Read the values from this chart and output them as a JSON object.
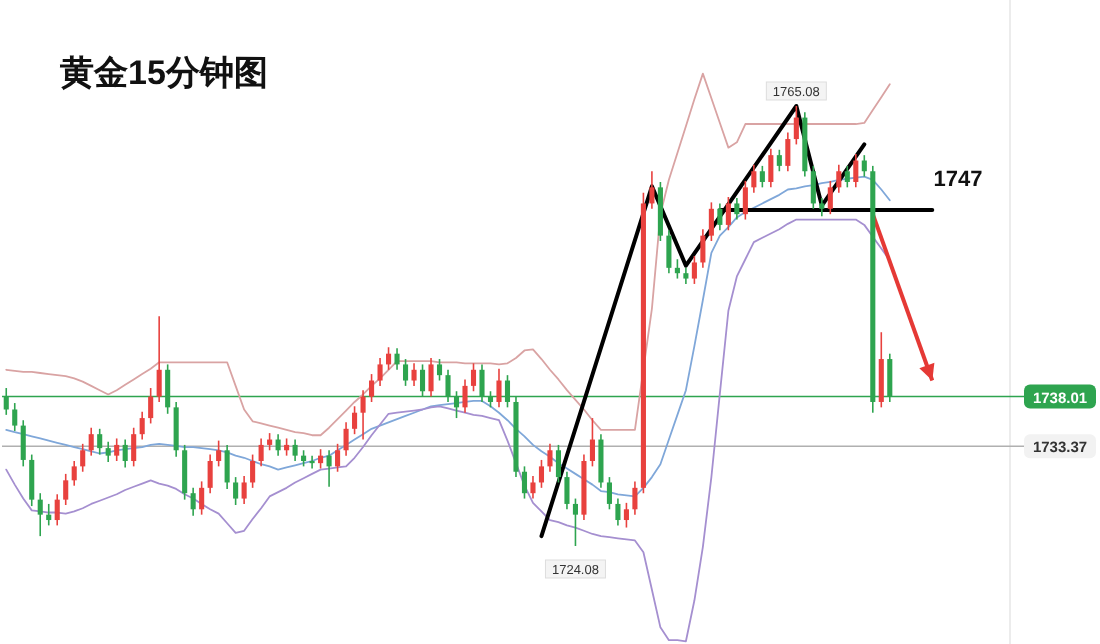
{
  "chart_data": {
    "type": "candlestick",
    "title": "黄金15分钟图",
    "categories": [
      null,
      null,
      null,
      null,
      null,
      null,
      null,
      null,
      null,
      null,
      null,
      null,
      null,
      null,
      null,
      null,
      null,
      null,
      null,
      null,
      null,
      null,
      null,
      null,
      null,
      null,
      null,
      null,
      null,
      null,
      null,
      null,
      null,
      null,
      null,
      null,
      null,
      null,
      null,
      null,
      null,
      null,
      null,
      null,
      null,
      null,
      null,
      null,
      null,
      null,
      null,
      null,
      null,
      null,
      null,
      null,
      null,
      null,
      null,
      null,
      null,
      null,
      null,
      null,
      null,
      null,
      null,
      null,
      null,
      null,
      null,
      null,
      null,
      null,
      null,
      null,
      null,
      null,
      null,
      null,
      null,
      null,
      null,
      null,
      null,
      null,
      null,
      null,
      null,
      null,
      null,
      null,
      null,
      null,
      null,
      null,
      null,
      null,
      null,
      null,
      null,
      null,
      null,
      null,
      null,
      null,
      null,
      null,
      null,
      null,
      null,
      null,
      null
    ],
    "ohlc": [
      [
        1738.0,
        1738.8,
        1736.3,
        1736.8
      ],
      [
        1736.8,
        1737.4,
        1734.8,
        1735.3
      ],
      [
        1735.3,
        1735.8,
        1731.5,
        1732.1
      ],
      [
        1732.1,
        1732.6,
        1727.8,
        1728.4
      ],
      [
        1728.4,
        1729.0,
        1725.0,
        1727.0
      ],
      [
        1727.0,
        1728.0,
        1726.0,
        1726.5
      ],
      [
        1726.5,
        1728.9,
        1726.0,
        1728.4
      ],
      [
        1728.4,
        1730.8,
        1727.9,
        1730.2
      ],
      [
        1730.2,
        1732.0,
        1729.7,
        1731.5
      ],
      [
        1731.5,
        1733.6,
        1731.0,
        1733.0
      ],
      [
        1733.0,
        1735.1,
        1732.5,
        1734.5
      ],
      [
        1734.5,
        1735.0,
        1732.6,
        1733.2
      ],
      [
        1733.2,
        1733.8,
        1731.9,
        1732.5
      ],
      [
        1732.5,
        1734.1,
        1732.0,
        1733.5
      ],
      [
        1733.5,
        1734.0,
        1731.4,
        1732.0
      ],
      [
        1732.0,
        1735.1,
        1731.5,
        1734.5
      ],
      [
        1734.5,
        1736.6,
        1734.0,
        1736.0
      ],
      [
        1736.0,
        1738.8,
        1735.5,
        1738.0
      ],
      [
        1738.0,
        1745.5,
        1737.5,
        1740.5
      ],
      [
        1740.5,
        1741.0,
        1736.4,
        1737.0
      ],
      [
        1737.0,
        1737.5,
        1732.4,
        1733.0
      ],
      [
        1733.0,
        1733.5,
        1728.4,
        1729.0
      ],
      [
        1729.0,
        1729.5,
        1726.9,
        1727.5
      ],
      [
        1727.5,
        1730.1,
        1727.0,
        1729.5
      ],
      [
        1729.5,
        1732.6,
        1729.0,
        1732.0
      ],
      [
        1732.0,
        1733.9,
        1731.5,
        1733.0
      ],
      [
        1733.0,
        1733.5,
        1729.4,
        1730.0
      ],
      [
        1730.0,
        1730.5,
        1727.9,
        1728.5
      ],
      [
        1728.5,
        1730.6,
        1728.0,
        1730.0
      ],
      [
        1730.0,
        1732.6,
        1729.5,
        1732.0
      ],
      [
        1732.0,
        1734.1,
        1731.5,
        1733.5
      ],
      [
        1733.5,
        1734.6,
        1733.0,
        1734.0
      ],
      [
        1734.0,
        1734.5,
        1732.5,
        1733.0
      ],
      [
        1733.0,
        1734.1,
        1732.5,
        1733.5
      ],
      [
        1733.5,
        1734.0,
        1732.0,
        1732.5
      ],
      [
        1732.5,
        1733.0,
        1731.5,
        1732.0
      ],
      [
        1732.0,
        1732.5,
        1731.3,
        1731.8
      ],
      [
        1731.8,
        1733.1,
        1731.3,
        1732.5
      ],
      [
        1732.5,
        1733.0,
        1729.6,
        1731.5
      ],
      [
        1731.5,
        1733.6,
        1731.0,
        1733.0
      ],
      [
        1733.0,
        1735.6,
        1732.5,
        1735.0
      ],
      [
        1735.0,
        1737.1,
        1734.5,
        1736.5
      ],
      [
        1736.5,
        1738.6,
        1734.0,
        1738.0
      ],
      [
        1738.0,
        1740.1,
        1737.5,
        1739.5
      ],
      [
        1739.5,
        1741.6,
        1739.0,
        1741.0
      ],
      [
        1741.0,
        1742.6,
        1740.5,
        1742.0
      ],
      [
        1742.0,
        1742.5,
        1740.5,
        1741.0
      ],
      [
        1741.0,
        1741.5,
        1739.0,
        1739.5
      ],
      [
        1739.5,
        1741.1,
        1739.0,
        1740.5
      ],
      [
        1740.5,
        1741.0,
        1738.0,
        1738.5
      ],
      [
        1738.5,
        1741.6,
        1738.0,
        1741.0
      ],
      [
        1741.0,
        1741.5,
        1739.5,
        1740.0
      ],
      [
        1740.0,
        1740.5,
        1737.5,
        1738.0
      ],
      [
        1738.0,
        1738.5,
        1736.0,
        1737.0
      ],
      [
        1737.0,
        1739.6,
        1736.5,
        1739.0
      ],
      [
        1739.0,
        1741.1,
        1738.5,
        1740.5
      ],
      [
        1740.5,
        1741.0,
        1737.5,
        1738.0
      ],
      [
        1738.0,
        1738.5,
        1737.0,
        1737.5
      ],
      [
        1737.5,
        1740.6,
        1737.0,
        1739.5
      ],
      [
        1739.5,
        1740.0,
        1737.0,
        1737.5
      ],
      [
        1737.5,
        1738.0,
        1730.5,
        1731.0
      ],
      [
        1731.0,
        1731.5,
        1728.5,
        1729.0
      ],
      [
        1729.0,
        1730.6,
        1728.5,
        1730.0
      ],
      [
        1730.0,
        1732.1,
        1729.5,
        1731.5
      ],
      [
        1731.5,
        1733.6,
        1731.0,
        1733.0
      ],
      [
        1733.0,
        1733.5,
        1730.0,
        1730.5
      ],
      [
        1730.5,
        1731.0,
        1727.5,
        1728.0
      ],
      [
        1728.0,
        1728.5,
        1724.08,
        1727.0
      ],
      [
        1727.0,
        1732.6,
        1726.5,
        1732.0
      ],
      [
        1732.0,
        1736.0,
        1731.5,
        1734.0
      ],
      [
        1734.0,
        1734.5,
        1729.5,
        1730.0
      ],
      [
        1730.0,
        1730.5,
        1727.5,
        1728.0
      ],
      [
        1728.0,
        1728.5,
        1726.0,
        1726.5
      ],
      [
        1726.5,
        1728.1,
        1725.8,
        1727.5
      ],
      [
        1727.5,
        1730.1,
        1727.0,
        1729.5
      ],
      [
        1729.5,
        1757.0,
        1729.0,
        1756.0
      ],
      [
        1756.0,
        1759.0,
        1755.5,
        1757.5
      ],
      [
        1757.5,
        1758.0,
        1752.5,
        1753.0
      ],
      [
        1753.0,
        1753.5,
        1749.5,
        1750.0
      ],
      [
        1750.0,
        1750.8,
        1749.0,
        1749.5
      ],
      [
        1749.5,
        1750.0,
        1748.5,
        1749.0
      ],
      [
        1749.0,
        1751.1,
        1748.5,
        1750.5
      ],
      [
        1750.5,
        1753.6,
        1750.0,
        1753.0
      ],
      [
        1753.0,
        1756.1,
        1752.5,
        1755.5
      ],
      [
        1755.5,
        1756.0,
        1753.5,
        1754.0
      ],
      [
        1754.0,
        1756.6,
        1753.5,
        1756.0
      ],
      [
        1756.0,
        1756.5,
        1754.5,
        1755.0
      ],
      [
        1755.0,
        1758.1,
        1754.5,
        1757.5
      ],
      [
        1757.5,
        1759.6,
        1757.0,
        1759.0
      ],
      [
        1759.0,
        1759.5,
        1757.5,
        1758.0
      ],
      [
        1758.0,
        1761.1,
        1757.5,
        1760.5
      ],
      [
        1760.5,
        1761.0,
        1759.0,
        1759.5
      ],
      [
        1759.5,
        1762.6,
        1759.0,
        1762.0
      ],
      [
        1762.0,
        1765.08,
        1761.5,
        1764.0
      ],
      [
        1764.0,
        1764.5,
        1758.5,
        1759.0
      ],
      [
        1759.0,
        1759.5,
        1755.5,
        1756.0
      ],
      [
        1756.0,
        1756.5,
        1754.8,
        1755.5
      ],
      [
        1755.5,
        1758.1,
        1755.0,
        1757.5
      ],
      [
        1757.5,
        1759.6,
        1757.0,
        1759.0
      ],
      [
        1759.0,
        1759.5,
        1757.5,
        1758.0
      ],
      [
        1758.0,
        1760.6,
        1757.5,
        1760.0
      ],
      [
        1760.0,
        1760.5,
        1758.5,
        1759.0
      ],
      [
        1759.0,
        1759.5,
        1736.5,
        1737.5
      ],
      [
        1737.5,
        1744.0,
        1737.0,
        1741.5
      ],
      [
        1741.5,
        1742.0,
        1737.5,
        1738.01
      ],
      null,
      null,
      null,
      null,
      null,
      null,
      null,
      null
    ],
    "colors": [
      "#2ea44f",
      "#2ea44f",
      "#2ea44f",
      "#2ea44f",
      "#2ea44f",
      "#2ea44f",
      "#e8413e",
      "#e8413e",
      "#e8413e",
      "#e8413e",
      "#e8413e",
      "#2ea44f",
      "#2ea44f",
      "#e8413e",
      "#2ea44f",
      "#e8413e",
      "#e8413e",
      "#e8413e",
      "#e8413e",
      "#2ea44f",
      "#2ea44f",
      "#2ea44f",
      "#2ea44f",
      "#e8413e",
      "#e8413e",
      "#e8413e",
      "#2ea44f",
      "#2ea44f",
      "#e8413e",
      "#e8413e",
      "#e8413e",
      "#e8413e",
      "#2ea44f",
      "#e8413e",
      "#2ea44f",
      "#2ea44f",
      "#2ea44f",
      "#e8413e",
      "#2ea44f",
      "#e8413e",
      "#e8413e",
      "#e8413e",
      "#e8413e",
      "#e8413e",
      "#e8413e",
      "#e8413e",
      "#2ea44f",
      "#2ea44f",
      "#e8413e",
      "#2ea44f",
      "#e8413e",
      "#2ea44f",
      "#2ea44f",
      "#2ea44f",
      "#e8413e",
      "#e8413e",
      "#2ea44f",
      "#2ea44f",
      "#e8413e",
      "#2ea44f",
      "#2ea44f",
      "#2ea44f",
      "#e8413e",
      "#e8413e",
      "#e8413e",
      "#2ea44f",
      "#2ea44f",
      "#2ea44f",
      "#e8413e",
      "#e8413e",
      "#2ea44f",
      "#2ea44f",
      "#2ea44f",
      "#e8413e",
      "#e8413e",
      "#e8413e",
      "#e8413e",
      "#2ea44f",
      "#2ea44f",
      "#2ea44f",
      "#2ea44f",
      "#e8413e",
      "#e8413e",
      "#e8413e",
      "#2ea44f",
      "#e8413e",
      "#2ea44f",
      "#e8413e",
      "#e8413e",
      "#2ea44f",
      "#e8413e",
      "#2ea44f",
      "#e8413e",
      "#e8413e",
      "#2ea44f",
      "#2ea44f",
      "#2ea44f",
      "#e8413e",
      "#e8413e",
      "#2ea44f",
      "#e8413e",
      "#2ea44f",
      "#2ea44f",
      "#e8413e",
      "#2ea44f",
      null,
      null,
      null,
      null,
      null,
      null,
      null,
      null
    ],
    "series": [
      {
        "type": "line",
        "color": "#d9a3a3",
        "values": [
          1740.5,
          1740.4,
          1740.3,
          1740.3,
          1740.2,
          1740.1,
          1740.0,
          1739.9,
          1739.7,
          1739.4,
          1739.0,
          1738.6,
          1738.2,
          1738.6,
          1739.1,
          1739.6,
          1740.1,
          1740.6,
          1741.2,
          1741.2,
          1741.2,
          1741.2,
          1741.2,
          1741.2,
          1741.2,
          1741.2,
          1741.2,
          1739.0,
          1736.8,
          1735.7,
          1735.5,
          1735.3,
          1735.1,
          1734.9,
          1734.7,
          1734.6,
          1734.4,
          1734.4,
          1735.1,
          1735.9,
          1736.7,
          1737.5,
          1738.2,
          1739.0,
          1739.7,
          1740.5,
          1741.3,
          1741.3,
          1741.3,
          1741.3,
          1741.3,
          1741.2,
          1741.2,
          1741.2,
          1741.1,
          1741.1,
          1741.1,
          1741.1,
          1741.0,
          1741.1,
          1741.6,
          1742.3,
          1742.4,
          1741.5,
          1740.5,
          1739.6,
          1738.6,
          1737.7,
          1736.8,
          1735.8,
          1734.9,
          1734.9,
          1734.9,
          1734.9,
          1734.9,
          null,
          1746.2,
          1755.0,
          1758.2,
          1760.7,
          1763.2,
          1765.7,
          1768.1,
          1765.8,
          1763.5,
          1761.2,
          1761.7,
          1763.4,
          1763.4,
          1763.4,
          1763.4,
          1763.4,
          1763.4,
          1763.4,
          1763.4,
          1763.4,
          1763.4,
          1763.4,
          1763.4,
          1763.4,
          1763.4,
          1763.5,
          1764.7,
          1765.9,
          1767.1,
          null,
          null,
          null,
          null,
          null,
          null,
          null,
          null
        ]
      },
      {
        "type": "line",
        "color": "#7fa7d9",
        "values": [
          1734.9,
          1734.7,
          1734.5,
          1734.3,
          1734.1,
          1733.9,
          1733.7,
          1733.5,
          1733.3,
          1733.1,
          1732.9,
          1732.7,
          1732.8,
          1733.0,
          1733.1,
          1733.2,
          1733.3,
          1733.5,
          1733.6,
          1733.5,
          1733.4,
          1733.3,
          1733.3,
          1733.2,
          1733.1,
          1733.0,
          1732.8,
          1732.5,
          1732.3,
          1732.0,
          1731.7,
          1731.5,
          1731.2,
          1731.4,
          1731.6,
          1731.8,
          1732.0,
          1732.3,
          1732.5,
          1733.0,
          1733.5,
          1734.0,
          1734.5,
          1735.0,
          1735.3,
          1735.6,
          1735.9,
          1736.2,
          1736.5,
          1736.8,
          1737.1,
          1737.2,
          1737.3,
          1737.4,
          1737.5,
          1737.6,
          1737.6,
          1737.1,
          1736.5,
          1735.8,
          1735.0,
          1734.3,
          1733.5,
          1732.9,
          1732.4,
          1731.8,
          1731.3,
          1730.8,
          1730.3,
          1729.8,
          1729.2,
          1729.1,
          1728.9,
          1728.8,
          1728.7,
          1729.5,
          1730.5,
          1731.7,
          1734.0,
          1736.3,
          1738.6,
          1742.7,
          1747.0,
          1751.4,
          1753.0,
          1753.8,
          1754.7,
          1755.2,
          1755.6,
          1756.0,
          1756.4,
          1756.8,
          1757.3,
          1757.4,
          1757.6,
          1757.7,
          1757.9,
          1758.0,
          1758.2,
          1758.3,
          1758.4,
          1758.5,
          1758.2,
          1757.3,
          1756.3,
          null,
          null,
          null,
          null,
          null,
          null,
          null,
          null
        ]
      },
      {
        "type": "line",
        "color": "#a58fd0",
        "values": [
          1731.2,
          1729.8,
          1728.5,
          1727.4,
          1727.3,
          1727.2,
          1727.2,
          1727.1,
          1727.3,
          1727.6,
          1728.0,
          1728.3,
          1728.6,
          1728.9,
          1729.3,
          1729.6,
          1729.9,
          1730.2,
          1729.9,
          1729.7,
          1729.4,
          1728.9,
          1728.5,
          1728.0,
          1727.5,
          1727.1,
          1726.2,
          1725.3,
          1725.5,
          1726.6,
          1727.6,
          1728.7,
          1729.1,
          1729.5,
          1730.0,
          1730.4,
          1730.8,
          1731.2,
          1731.3,
          1731.4,
          1731.5,
          1732.3,
          1733.3,
          1734.4,
          1735.4,
          1736.4,
          1736.5,
          1736.6,
          1736.7,
          1736.8,
          1737.0,
          1737.1,
          1736.9,
          1736.7,
          1736.5,
          1736.3,
          1736.2,
          1736.0,
          1735.8,
          1733.9,
          1731.8,
          1729.7,
          1728.1,
          1727.3,
          1726.5,
          1726.3,
          1726.0,
          1725.8,
          1725.5,
          1725.2,
          1725.0,
          1724.9,
          1724.8,
          1724.7,
          1724.6,
          1723.5,
          1720.0,
          1716.5,
          1715.3,
          1715.3,
          1715.2,
          1719.0,
          1724.0,
          1730.5,
          1738.3,
          1746.0,
          1749.2,
          1750.8,
          1752.4,
          1752.8,
          1753.2,
          1753.6,
          1754.1,
          1754.5,
          1754.5,
          1754.5,
          1754.5,
          1754.5,
          1754.5,
          1754.5,
          1754.5,
          1754.0,
          1752.9,
          1751.8,
          1750.7,
          null,
          null,
          null,
          null,
          null,
          null,
          null,
          null
        ]
      },
      {
        "type": "line",
        "color": "#000000",
        "values": [
          null,
          null,
          null,
          null,
          null,
          null,
          null,
          null,
          null,
          null,
          null,
          null,
          null,
          null,
          null,
          null,
          null,
          null,
          null,
          null,
          null,
          null,
          null,
          null,
          null,
          null,
          null,
          null,
          null,
          null,
          null,
          null,
          null,
          null,
          null,
          null,
          null,
          null,
          null,
          null,
          null,
          null,
          null,
          null,
          null,
          null,
          null,
          null,
          null,
          null,
          null,
          null,
          null,
          null,
          null,
          null,
          null,
          null,
          null,
          null,
          null,
          null,
          null,
          1725.0,
          null,
          null,
          null,
          null,
          null,
          null,
          null,
          null,
          null,
          null,
          null,
          null,
          1757.6,
          null,
          null,
          null,
          1750.2,
          null,
          null,
          null,
          null,
          null,
          null,
          null,
          null,
          null,
          null,
          null,
          null,
          1765.08,
          null,
          null,
          1755.8,
          null,
          null,
          null,
          null,
          1761.5,
          null,
          null,
          null,
          null,
          null,
          null,
          null,
          null,
          null,
          null,
          null
        ]
      },
      {
        "type": "line",
        "color": "#000000",
        "values": [
          null,
          null,
          null,
          null,
          null,
          null,
          null,
          null,
          null,
          null,
          null,
          null,
          null,
          null,
          null,
          null,
          null,
          null,
          null,
          null,
          null,
          null,
          null,
          null,
          null,
          null,
          null,
          null,
          null,
          null,
          null,
          null,
          null,
          null,
          null,
          null,
          null,
          null,
          null,
          null,
          null,
          null,
          null,
          null,
          null,
          null,
          null,
          null,
          null,
          null,
          null,
          null,
          null,
          null,
          null,
          null,
          null,
          null,
          null,
          null,
          null,
          null,
          null,
          null,
          null,
          null,
          null,
          null,
          null,
          null,
          null,
          null,
          null,
          null,
          null,
          null,
          null,
          null,
          null,
          null,
          null,
          null,
          null,
          null,
          1755.4,
          null,
          null,
          null,
          null,
          null,
          null,
          null,
          null,
          null,
          null,
          null,
          null,
          null,
          null,
          null,
          null,
          null,
          null,
          null,
          null,
          null,
          null,
          null,
          null,
          1755.4,
          null,
          null,
          null
        ]
      },
      {
        "type": "line",
        "color": "#e53935",
        "values": [
          null,
          null,
          null,
          null,
          null,
          null,
          null,
          null,
          null,
          null,
          null,
          null,
          null,
          null,
          null,
          null,
          null,
          null,
          null,
          null,
          null,
          null,
          null,
          null,
          null,
          null,
          null,
          null,
          null,
          null,
          null,
          null,
          null,
          null,
          null,
          null,
          null,
          null,
          null,
          null,
          null,
          null,
          null,
          null,
          null,
          null,
          null,
          null,
          null,
          null,
          null,
          null,
          null,
          null,
          null,
          null,
          null,
          null,
          null,
          null,
          null,
          null,
          null,
          null,
          null,
          null,
          null,
          null,
          null,
          null,
          null,
          null,
          null,
          null,
          null,
          null,
          null,
          null,
          null,
          null,
          null,
          null,
          null,
          null,
          null,
          null,
          null,
          null,
          null,
          null,
          null,
          null,
          null,
          null,
          null,
          null,
          null,
          null,
          null,
          null,
          null,
          null,
          1755.0,
          null,
          null,
          null,
          null,
          null,
          null,
          1739.5,
          null,
          null,
          null
        ]
      }
    ],
    "ref_lines": [
      {
        "axis": "y",
        "value": 1738.01,
        "label": "1738.01",
        "color": "#2ea44f"
      },
      {
        "axis": "y",
        "value": 1733.37,
        "label": "1733.37",
        "color": "#b0b0b0"
      }
    ],
    "annotations": [
      "1747",
      {
        "text": "1765.08",
        "y": 1765.08
      },
      {
        "text": "1724.08",
        "y": 1724.08
      }
    ]
  }
}
